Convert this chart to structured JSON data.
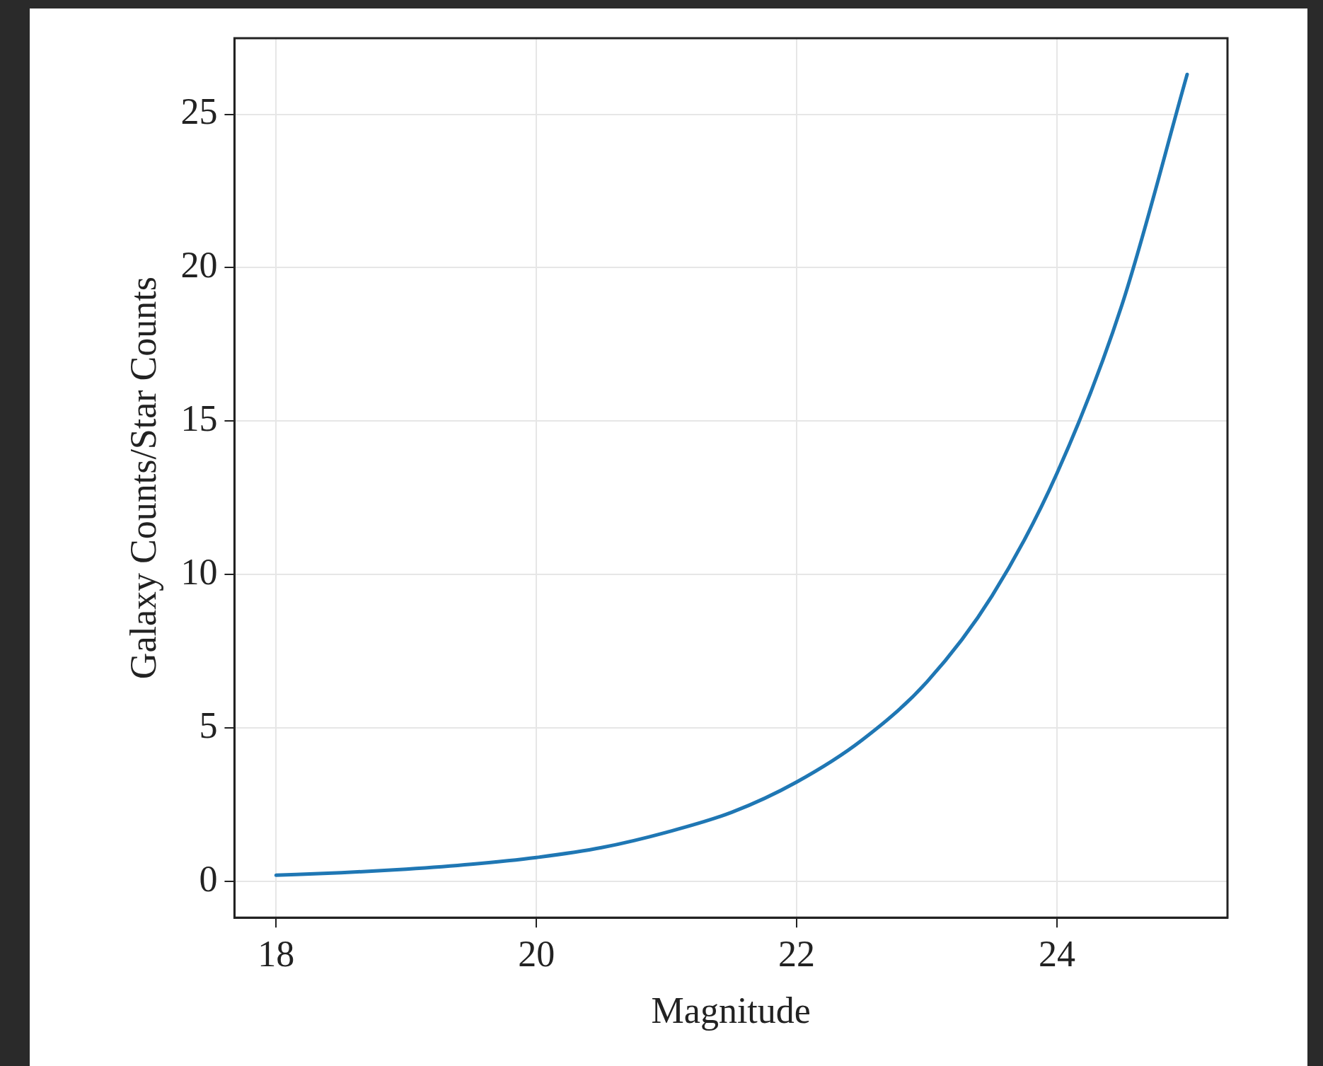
{
  "chart_data": {
    "type": "line",
    "xlabel": "Magnitude",
    "ylabel": "Galaxy Counts/Star Counts",
    "x": [
      18,
      18.5,
      19,
      19.5,
      20,
      20.5,
      21,
      21.5,
      22,
      22.5,
      23,
      23.5,
      24,
      24.5,
      25
    ],
    "series": [
      {
        "color": "#1f77b4",
        "values": [
          0.2,
          0.28,
          0.4,
          0.56,
          0.78,
          1.1,
          1.6,
          2.25,
          3.24,
          4.6,
          6.5,
          9.3,
          13.3,
          18.8,
          26.3
        ]
      }
    ],
    "xlim": [
      17.68,
      25.31
    ],
    "xticks": [
      18,
      20,
      22,
      24
    ],
    "ylim": [
      -1.18,
      27.48
    ],
    "yticks": [
      0,
      5,
      10,
      15,
      20,
      25
    ],
    "grid": true,
    "legend": false,
    "marker": "none",
    "line_style": "solid"
  }
}
